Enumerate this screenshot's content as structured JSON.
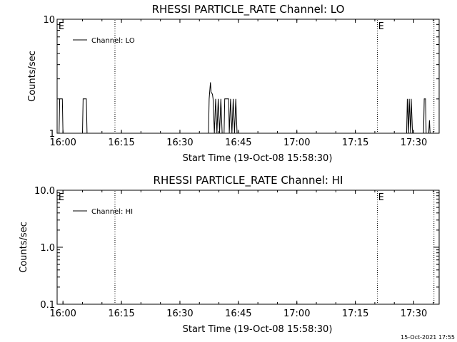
{
  "timestamp": "15-Oct-2021 17:55",
  "chart_data": [
    {
      "type": "line",
      "title": "RHESSI PARTICLE_RATE Channel: LO",
      "xlabel": "Start Time (19-Oct-08 15:58:30)",
      "ylabel": "Counts/sec",
      "xlim": [
        "15:58:30",
        "17:36:30"
      ],
      "x_ticks": [
        "16:00",
        "16:15",
        "16:30",
        "16:45",
        "17:00",
        "17:15",
        "17:30"
      ],
      "y_scale": "log",
      "ylim": [
        1,
        10
      ],
      "y_ticks": [
        "1",
        "10"
      ],
      "legend": {
        "position": "top-left",
        "entries": [
          "Channel: LO"
        ]
      },
      "markers": [
        {
          "label": "E",
          "time": "15:58:40"
        },
        {
          "label": "E",
          "time": "17:20:40"
        }
      ],
      "vlines_dotted": [
        "16:13:20",
        "17:20:40",
        "17:35:10"
      ],
      "series": [
        {
          "name": "Channel: LO",
          "points": [
            [
              "15:58:30",
              1
            ],
            [
              "15:59:00",
              1
            ],
            [
              "15:59:10",
              2
            ],
            [
              "15:59:50",
              2
            ],
            [
              "16:00:00",
              1
            ],
            [
              "16:05:00",
              1
            ],
            [
              "16:05:10",
              2
            ],
            [
              "16:06:00",
              2
            ],
            [
              "16:06:10",
              1
            ],
            [
              "16:37:20",
              1
            ],
            [
              "16:37:30",
              2
            ],
            [
              "16:37:50",
              2.8
            ],
            [
              "16:38:00",
              2.3
            ],
            [
              "16:38:20",
              2.2
            ],
            [
              "16:38:30",
              2
            ],
            [
              "16:38:50",
              1
            ],
            [
              "16:39:10",
              2
            ],
            [
              "16:39:30",
              1
            ],
            [
              "16:39:50",
              2
            ],
            [
              "16:40:10",
              1
            ],
            [
              "16:40:30",
              2
            ],
            [
              "16:40:50",
              1
            ],
            [
              "16:41:20",
              1
            ],
            [
              "16:41:30",
              2
            ],
            [
              "16:42:30",
              2
            ],
            [
              "16:42:40",
              1
            ],
            [
              "16:43:00",
              2
            ],
            [
              "16:43:20",
              1
            ],
            [
              "16:43:40",
              2
            ],
            [
              "16:44:00",
              1
            ],
            [
              "16:44:20",
              2
            ],
            [
              "16:44:40",
              1
            ],
            [
              "17:28:10",
              1
            ],
            [
              "17:28:20",
              2
            ],
            [
              "17:28:40",
              1
            ],
            [
              "17:28:50",
              2
            ],
            [
              "17:29:10",
              1
            ],
            [
              "17:29:20",
              2
            ],
            [
              "17:29:40",
              1
            ],
            [
              "17:32:30",
              1
            ],
            [
              "17:32:40",
              2
            ],
            [
              "17:33:00",
              2
            ],
            [
              "17:33:10",
              1
            ],
            [
              "17:33:50",
              1
            ],
            [
              "17:34:00",
              1.3
            ],
            [
              "17:34:10",
              1
            ]
          ]
        }
      ]
    },
    {
      "type": "line",
      "title": "RHESSI PARTICLE_RATE Channel: HI",
      "xlabel": "Start Time (19-Oct-08 15:58:30)",
      "ylabel": "Counts/sec",
      "xlim": [
        "15:58:30",
        "17:36:30"
      ],
      "x_ticks": [
        "16:00",
        "16:15",
        "16:30",
        "16:45",
        "17:00",
        "17:15",
        "17:30"
      ],
      "y_scale": "log",
      "ylim": [
        0.1,
        10
      ],
      "y_ticks": [
        "0.1",
        "1.0",
        "10.0"
      ],
      "legend": {
        "position": "top-left",
        "entries": [
          "Channel: HI"
        ]
      },
      "markers": [
        {
          "label": "E",
          "time": "15:58:40"
        },
        {
          "label": "E",
          "time": "17:20:40"
        }
      ],
      "vlines_dotted": [
        "16:13:20",
        "17:20:40",
        "17:35:10"
      ],
      "series": [
        {
          "name": "Channel: HI",
          "points": []
        }
      ]
    }
  ]
}
